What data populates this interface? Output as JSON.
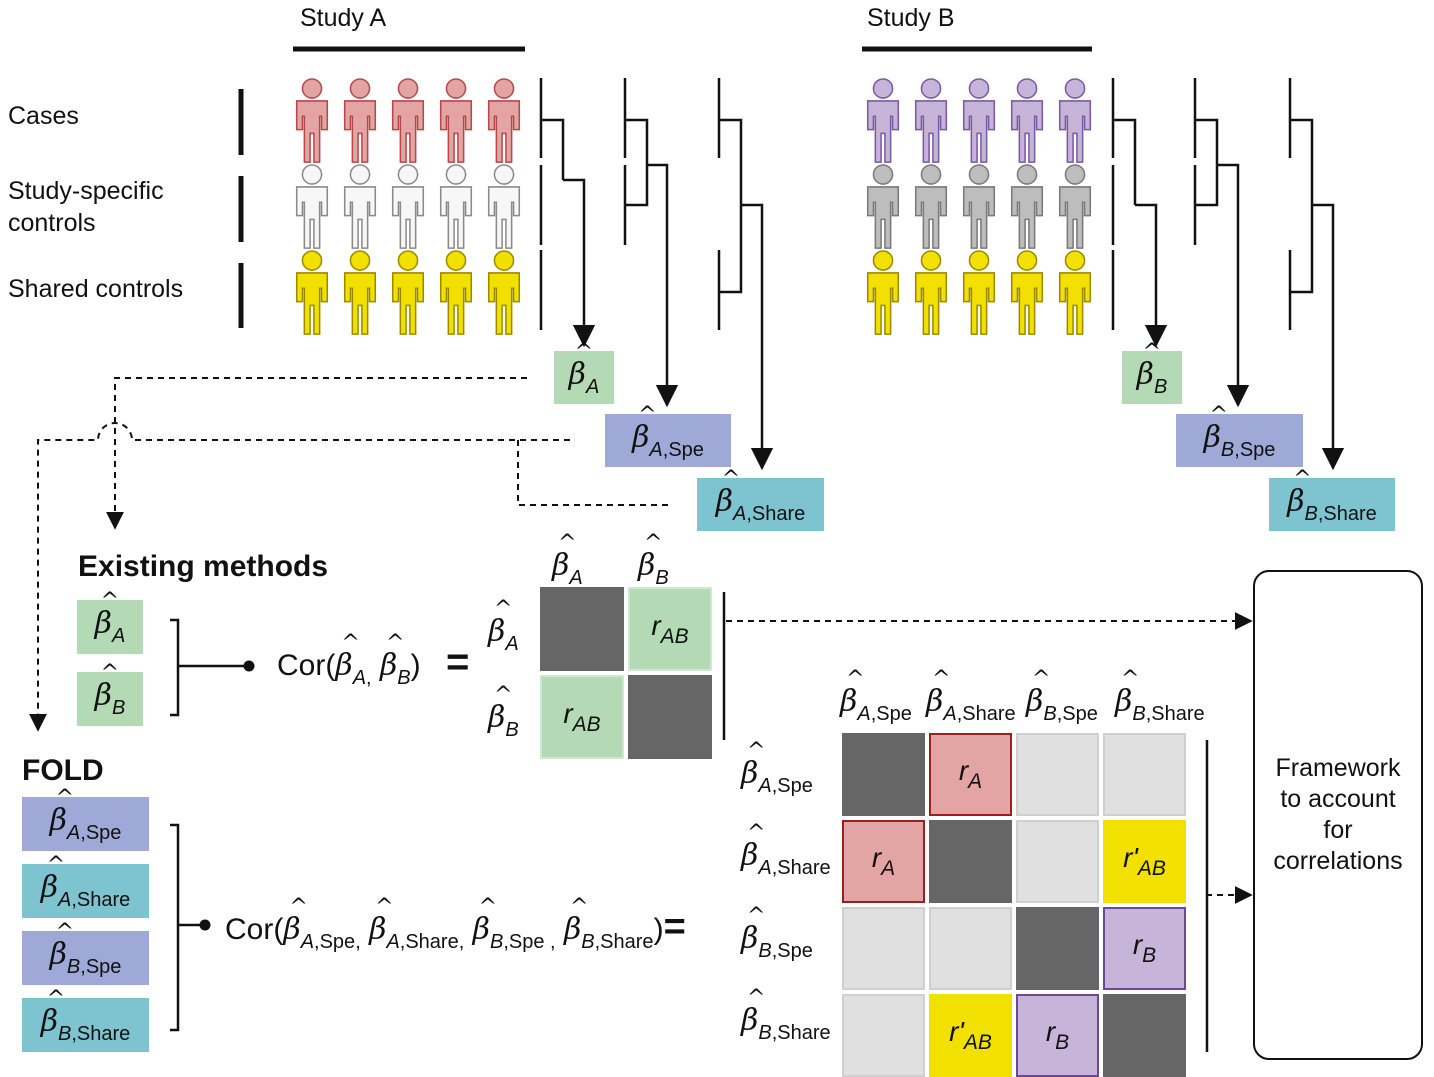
{
  "studies": {
    "a": {
      "title": "Study A"
    },
    "b": {
      "title": "Study B"
    }
  },
  "rows": {
    "cases": "Cases",
    "specific_line1": "Study-specific",
    "specific_line2": "controls",
    "shared": "Shared controls"
  },
  "sections": {
    "existing": "Existing methods",
    "fold": "FOLD"
  },
  "estimates": {
    "beta_a": {
      "sub": "A",
      "sub2": ""
    },
    "beta_b": {
      "sub": "B",
      "sub2": ""
    },
    "beta_a_spe": {
      "sub": "A",
      "sub2": ",Spe"
    },
    "beta_a_share": {
      "sub": "A",
      "sub2": ",Share"
    },
    "beta_b_spe": {
      "sub": "B",
      "sub2": ",Spe"
    },
    "beta_b_share": {
      "sub": "B",
      "sub2": ",Share"
    }
  },
  "cor": {
    "prefix": "Cor(",
    "suffix": ")",
    "equals": "="
  },
  "matrix_small": {
    "cells": [
      [
        "",
        "r_AB"
      ],
      [
        "r_AB",
        ""
      ]
    ]
  },
  "matrix_large": {
    "cells": [
      [
        "",
        "r_A",
        "",
        ""
      ],
      [
        "r_A",
        "",
        "",
        "r'_AB"
      ],
      [
        "",
        "",
        "",
        "r_B"
      ],
      [
        "",
        "r'_AB",
        "r_B",
        ""
      ]
    ]
  },
  "r_labels": {
    "r_ab": "AB",
    "r_a": "A",
    "r_b": "B",
    "r_prefix": "r",
    "r_prime_prefix": "r'"
  },
  "framework": {
    "text": "Framework\nto account\nfor\ncorrelations"
  },
  "colors": {
    "case_a": "#e3a5a3",
    "case_a_edge": "#b84848",
    "case_b": "#c6b4d9",
    "case_b_edge": "#7a5aa0",
    "ctrl_a": "#f7f7f7",
    "ctrl_a_edge": "#8a8a8a",
    "ctrl_b": "#bdbdbd",
    "ctrl_b_edge": "#7a7a7a",
    "shared": "#f2e000",
    "shared_edge": "#9a8a00",
    "beta_plain": "#b3d9b5",
    "beta_spe": "#9ea9d7",
    "beta_share": "#7ec3d0",
    "diag": "#666666",
    "empty": "#e0e0e0",
    "r_a": "#e3a5a3",
    "r_b": "#c6b4d9",
    "r_prime": "#f2e000"
  },
  "icons": [
    "person-icon",
    "hat-symbol"
  ]
}
